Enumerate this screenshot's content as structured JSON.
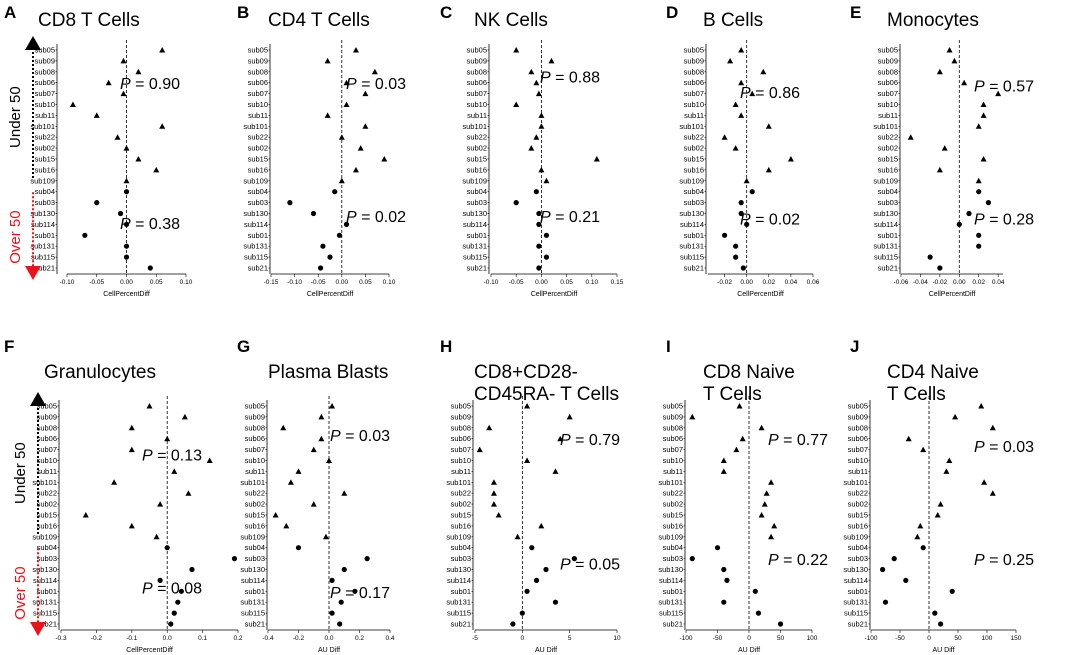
{
  "subjects": [
    "sub05",
    "sub09",
    "sub08",
    "sub06",
    "sub07",
    "sub10",
    "sub11",
    "sub101",
    "sub22",
    "sub02",
    "sub15",
    "sub16",
    "sub109",
    "sub04",
    "sub03",
    "sub130",
    "sub114",
    "sub01",
    "sub131",
    "sub115",
    "sub21"
  ],
  "group_labels": {
    "under": "Under 50",
    "over": "Over 50"
  },
  "legend_markers": {
    "under": "triangle",
    "over": "circle"
  },
  "colors": {
    "marker": "#000000",
    "under_arrow": "#000000",
    "over_arrow": "#e8131b",
    "over_text": "#e8131b",
    "zero_line": "#000000"
  },
  "chart_data": [
    {
      "letter": "A",
      "type": "scatter",
      "title": [
        "CD8 T Cells"
      ],
      "xlabel": "CellPercentDiff",
      "xticks": [
        -0.1,
        -0.05,
        0.0,
        0.05,
        0.1
      ],
      "xtick_labels": [
        "-0.10",
        "-0.05",
        "0.00",
        "0.05",
        "0.10"
      ],
      "xlim": [
        -0.1,
        0.1
      ],
      "p_under": "0.90",
      "p_over": "0.38",
      "values": [
        0.06,
        -0.005,
        0.02,
        -0.03,
        -0.005,
        -0.09,
        -0.05,
        0.06,
        -0.015,
        0.0,
        0.02,
        0.05,
        0.0,
        0.0,
        -0.05,
        -0.01,
        0.0,
        -0.07,
        0.0,
        0.0,
        0.04
      ]
    },
    {
      "letter": "B",
      "type": "scatter",
      "title": [
        "CD4 T Cells"
      ],
      "xlabel": "CellPercentDiff",
      "xticks": [
        -0.15,
        -0.1,
        -0.05,
        0.0,
        0.05,
        0.1
      ],
      "xtick_labels": [
        "-0.15",
        "-0.10",
        "-0.05",
        "0.00",
        "0.05",
        "0.10"
      ],
      "xlim": [
        -0.15,
        0.1
      ],
      "p_under": "0.03",
      "p_over": "0.02",
      "values": [
        0.03,
        -0.03,
        0.07,
        0.01,
        0.05,
        0.01,
        -0.03,
        0.05,
        0.0,
        0.04,
        0.09,
        0.03,
        0.0,
        -0.015,
        -0.11,
        -0.06,
        0.01,
        -0.005,
        -0.04,
        -0.025,
        -0.045
      ]
    },
    {
      "letter": "C",
      "type": "scatter",
      "title": [
        "NK Cells"
      ],
      "xlabel": "CellPercentDiff",
      "xticks": [
        -0.1,
        -0.05,
        0.0,
        0.05,
        0.1,
        0.15
      ],
      "xtick_labels": [
        "-0.10",
        "-0.05",
        "0.00",
        "0.05",
        "0.10",
        "0.15"
      ],
      "xlim": [
        -0.1,
        0.15
      ],
      "p_under": "0.88",
      "p_over": "0.21",
      "values": [
        -0.05,
        0.02,
        -0.02,
        -0.01,
        -0.005,
        -0.05,
        0.0,
        0.0,
        -0.01,
        -0.02,
        0.11,
        0.0,
        0.01,
        -0.01,
        -0.05,
        -0.005,
        -0.005,
        0.01,
        -0.005,
        0.01,
        -0.005
      ]
    },
    {
      "letter": "D",
      "type": "scatter",
      "title": [
        "B Cells"
      ],
      "xlabel": "CellPercentDiff",
      "xticks": [
        -0.02,
        0.0,
        0.02,
        0.04,
        0.06
      ],
      "xtick_labels": [
        "-0.02",
        "0.00",
        "0.02",
        "0.04",
        "0.06"
      ],
      "xlim": [
        -0.035,
        0.06
      ],
      "p_under": "0.86",
      "p_over": "0.02",
      "values": [
        -0.005,
        -0.015,
        0.015,
        -0.005,
        0.005,
        -0.01,
        -0.005,
        0.02,
        -0.02,
        -0.01,
        0.04,
        0.02,
        0.0,
        0.005,
        -0.005,
        -0.005,
        0.0,
        -0.02,
        -0.01,
        -0.01,
        -0.003
      ]
    },
    {
      "letter": "E",
      "type": "scatter",
      "title": [
        "Monocytes"
      ],
      "xlabel": "CellPercentDiff",
      "xticks": [
        -0.06,
        -0.04,
        -0.02,
        0.0,
        0.02,
        0.04
      ],
      "xtick_labels": [
        "-0.06",
        "-0.04",
        "-0.02",
        "0.00",
        "0.02",
        "0.04"
      ],
      "xlim": [
        -0.06,
        0.045
      ],
      "p_under": "0.57",
      "p_over": "0.28",
      "values": [
        -0.01,
        -0.005,
        -0.02,
        0.005,
        0.04,
        0.025,
        0.025,
        0.02,
        -0.05,
        -0.015,
        0.025,
        -0.02,
        0.02,
        0.02,
        0.03,
        0.01,
        0.0,
        0.02,
        0.02,
        -0.03,
        -0.02
      ]
    },
    {
      "letter": "F",
      "type": "scatter",
      "title": [
        "Granulocytes"
      ],
      "xlabel": "CellPercentDiff",
      "xticks": [
        -0.3,
        -0.2,
        -0.1,
        0.0,
        0.1,
        0.2
      ],
      "xtick_labels": [
        "-0.3",
        "-0.2",
        "-0.1",
        "0.0",
        "0.1",
        "0.2"
      ],
      "xlim": [
        -0.3,
        0.2
      ],
      "p_under": "0.13",
      "p_over": "0.08",
      "values": [
        -0.05,
        0.05,
        -0.1,
        0.0,
        -0.1,
        0.12,
        0.02,
        -0.15,
        0.06,
        -0.02,
        -0.23,
        -0.1,
        -0.03,
        0.0,
        0.19,
        0.07,
        -0.02,
        0.04,
        0.03,
        0.02,
        0.01
      ]
    },
    {
      "letter": "G",
      "type": "scatter",
      "title": [
        "Plasma Blasts"
      ],
      "xlabel": "AU Diff",
      "xticks": [
        -0.4,
        -0.2,
        0.0,
        0.2,
        0.4
      ],
      "xtick_labels": [
        "-0.4",
        "-0.2",
        "0.0",
        "0.2",
        "0.4"
      ],
      "xlim": [
        -0.4,
        0.4
      ],
      "p_under": "0.03",
      "p_over": "0.17",
      "values": [
        0.02,
        -0.05,
        -0.3,
        -0.05,
        -0.1,
        0.0,
        -0.2,
        -0.25,
        0.1,
        -0.1,
        -0.35,
        -0.28,
        -0.02,
        -0.2,
        0.25,
        0.1,
        0.02,
        0.17,
        0.08,
        0.02,
        0.07
      ]
    },
    {
      "letter": "H",
      "type": "scatter",
      "title": [
        "CD8+CD28-",
        "CD45RA- T Cells"
      ],
      "xlabel": "AU Diff",
      "xticks": [
        -5,
        0,
        5,
        10
      ],
      "xtick_labels": [
        "-5",
        "0",
        "5",
        "10"
      ],
      "xlim": [
        -5,
        10
      ],
      "p_under": "0.79",
      "p_over": "0.05",
      "values": [
        0.5,
        5,
        -3.5,
        4,
        -4.5,
        0.5,
        3.5,
        -3,
        -3,
        -3,
        -2.5,
        2,
        -0.5,
        1,
        5.5,
        2.5,
        1.5,
        0.5,
        3.5,
        0.0,
        -1.0
      ]
    },
    {
      "letter": "I",
      "type": "scatter",
      "title": [
        "CD8 Naive",
        "T Cells"
      ],
      "xlabel": "AU Diff",
      "xticks": [
        -100,
        -50,
        0,
        50,
        100
      ],
      "xtick_labels": [
        "-100",
        "-50",
        "0",
        "50",
        "100"
      ],
      "xlim": [
        -100,
        100
      ],
      "p_under": "0.77",
      "p_over": "0.22",
      "values": [
        -15,
        -90,
        20,
        -10,
        -20,
        -40,
        -40,
        35,
        28,
        25,
        20,
        40,
        35,
        -50,
        -90,
        -40,
        -35,
        10,
        -40,
        15,
        50
      ]
    },
    {
      "letter": "J",
      "type": "scatter",
      "title": [
        "CD4 Naive",
        "T Cells"
      ],
      "xlabel": "AU Diff",
      "xticks": [
        -100,
        -50,
        0,
        50,
        100,
        150
      ],
      "xtick_labels": [
        "-100",
        "-50",
        "0",
        "50",
        "100",
        "150"
      ],
      "xlim": [
        -100,
        150
      ],
      "p_under": "0.03",
      "p_over": "0.25",
      "values": [
        90,
        45,
        110,
        -35,
        -10,
        35,
        30,
        95,
        110,
        20,
        15,
        -15,
        -20,
        -10,
        -60,
        -80,
        -40,
        40,
        -75,
        10,
        20
      ]
    }
  ]
}
